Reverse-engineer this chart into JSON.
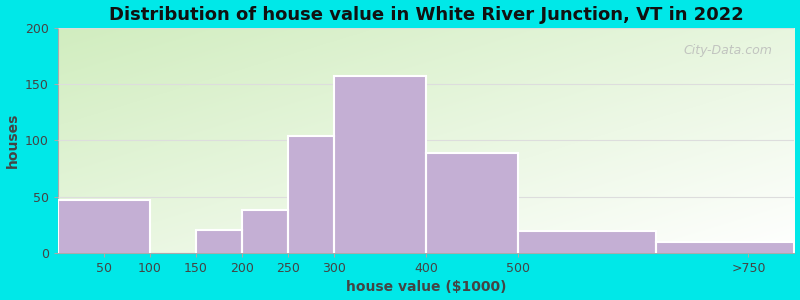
{
  "title": "Distribution of house value in White River Junction, VT in 2022",
  "xlabel": "house value ($1000)",
  "ylabel": "houses",
  "tick_positions": [
    50,
    100,
    150,
    200,
    250,
    300,
    400,
    500,
    750
  ],
  "tick_labels": [
    "50",
    "100",
    "150",
    "200",
    "250",
    "300",
    "400",
    "500",
    ">750"
  ],
  "bar_lefts": [
    0,
    100,
    150,
    200,
    250,
    300,
    400,
    500,
    650
  ],
  "bar_widths": [
    100,
    50,
    50,
    50,
    50,
    100,
    100,
    150,
    150
  ],
  "bar_values": [
    47,
    0,
    20,
    38,
    104,
    157,
    89,
    19,
    10
  ],
  "bar_color": "#c4afd4",
  "bar_edge_color": "#b09ec4",
  "yticks": [
    0,
    50,
    100,
    150,
    200
  ],
  "ylim": [
    0,
    200
  ],
  "xlim_min": 0,
  "xlim_max": 800,
  "background_outer": "#00e8e8",
  "title_fontsize": 13,
  "axis_label_fontsize": 10,
  "tick_fontsize": 9,
  "watermark_text": "City-Data.com",
  "watermark_color": "#b8b8b8"
}
